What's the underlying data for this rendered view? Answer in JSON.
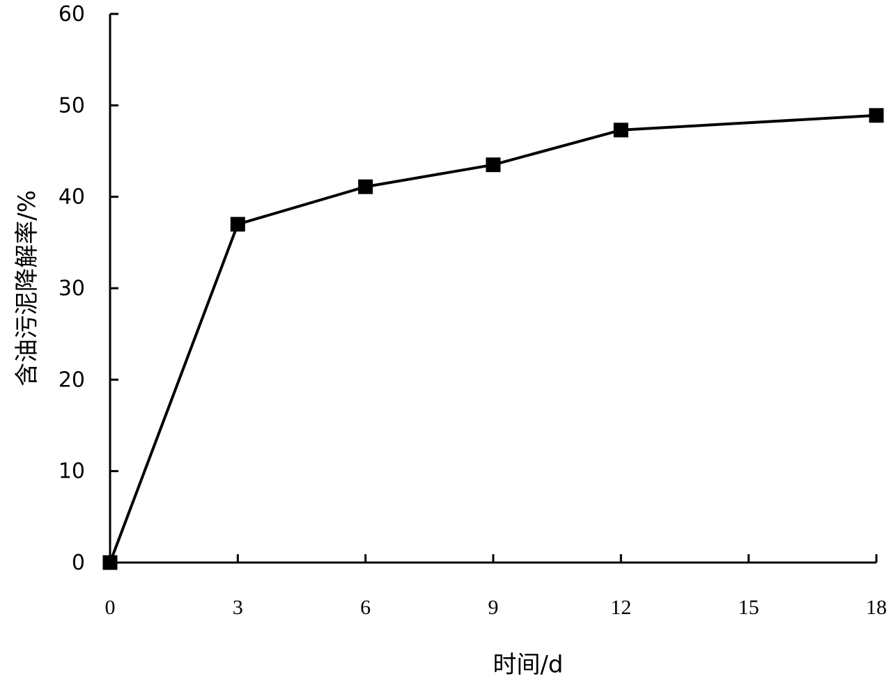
{
  "chart_data": {
    "type": "line",
    "title": "",
    "xlabel": "时间/d",
    "ylabel": "含油污泥降解率/%",
    "xlim": [
      0,
      18
    ],
    "ylim": [
      0,
      60
    ],
    "x_ticks": [
      0,
      3,
      6,
      9,
      12,
      15,
      18
    ],
    "y_ticks": [
      0,
      10,
      20,
      30,
      40,
      50,
      60
    ],
    "grid": false,
    "legend": "none",
    "series": [
      {
        "marker": "square",
        "color": "#000000",
        "x": [
          0,
          3,
          6,
          9,
          12,
          18
        ],
        "y": [
          0,
          37.0,
          41.1,
          43.5,
          47.3,
          48.9
        ]
      }
    ]
  }
}
